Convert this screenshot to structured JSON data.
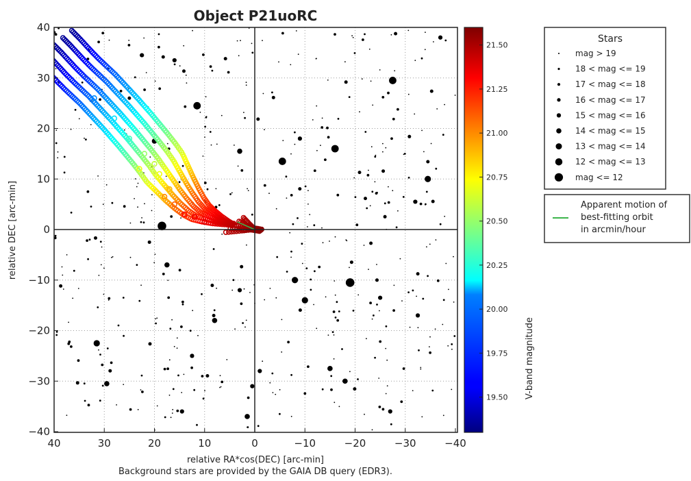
{
  "chart_data": {
    "type": "scatter",
    "title": "Object P21uoRC",
    "xlabel": "relative RA*cos(DEC) [arc-min]",
    "ylabel": "relative DEC [arc-min]",
    "footnote": "Background stars are provided by the GAIA DB query (EDR3).",
    "xlim": [
      40,
      -40
    ],
    "ylim": [
      -40,
      40
    ],
    "x_ticks": [
      40,
      30,
      20,
      10,
      0,
      -10,
      -20,
      -30,
      -40
    ],
    "y_ticks": [
      40,
      30,
      20,
      10,
      0,
      -10,
      -20,
      -30,
      -40
    ],
    "x_tick_labels": [
      "40",
      "30",
      "20",
      "10",
      "0",
      "−10",
      "−20",
      "−30",
      "−40"
    ],
    "y_tick_labels": [
      "40",
      "30",
      "20",
      "10",
      "0",
      "−10",
      "−20",
      "−30",
      "−40"
    ],
    "grid": true,
    "colorbar": {
      "label": "V-band magnitude",
      "range": [
        19.3,
        21.6
      ],
      "ticks": [
        19.5,
        19.75,
        20.0,
        20.25,
        20.5,
        20.75,
        21.0,
        21.25,
        21.5
      ],
      "tick_labels": [
        "19.50",
        "19.75",
        "20.00",
        "20.25",
        "20.50",
        "20.75",
        "21.00",
        "21.25",
        "21.50"
      ],
      "colormap": "jet"
    },
    "stars_legend": {
      "title": "Stars",
      "placement": "top-right, outside axes",
      "entries": [
        {
          "label": "mag > 19",
          "size": 1.0
        },
        {
          "label": "18 < mag <= 19",
          "size": 1.5
        },
        {
          "label": "17 < mag <= 18",
          "size": 2.0
        },
        {
          "label": "16 < mag <= 17",
          "size": 2.5
        },
        {
          "label": "15 < mag <= 16",
          "size": 3.0
        },
        {
          "label": "14 < mag <= 15",
          "size": 3.6
        },
        {
          "label": "13 < mag <= 14",
          "size": 4.3
        },
        {
          "label": "12 < mag <= 13",
          "size": 5.0
        },
        {
          "label": "mag <= 12",
          "size": 5.8
        }
      ]
    },
    "motion_legend": {
      "label_lines": [
        "Apparent motion of",
        "best-fitting orbit",
        "in arcmin/hour"
      ],
      "color": "#3cb44b",
      "placement": "right, outside axes"
    },
    "orbit_points": [
      {
        "x": 40.0,
        "y": 36.5,
        "mag": 19.35
      },
      {
        "x": 38.6,
        "y": 35.1,
        "mag": 19.4
      },
      {
        "x": 37.2,
        "y": 33.6,
        "mag": 19.5
      },
      {
        "x": 35.8,
        "y": 32.1,
        "mag": 19.58
      },
      {
        "x": 34.3,
        "y": 30.6,
        "mag": 19.66
      },
      {
        "x": 32.8,
        "y": 29.2,
        "mag": 19.74
      },
      {
        "x": 31.3,
        "y": 27.8,
        "mag": 19.82
      },
      {
        "x": 29.8,
        "y": 26.2,
        "mag": 19.9
      },
      {
        "x": 28.3,
        "y": 24.6,
        "mag": 19.98
      },
      {
        "x": 26.8,
        "y": 23.0,
        "mag": 20.06
      },
      {
        "x": 25.3,
        "y": 21.3,
        "mag": 20.14
      },
      {
        "x": 23.8,
        "y": 19.6,
        "mag": 20.24
      },
      {
        "x": 22.3,
        "y": 17.8,
        "mag": 20.34
      },
      {
        "x": 20.8,
        "y": 16.0,
        "mag": 20.44
      },
      {
        "x": 19.3,
        "y": 14.1,
        "mag": 20.56
      },
      {
        "x": 17.8,
        "y": 12.0,
        "mag": 20.68
      },
      {
        "x": 16.4,
        "y": 10.0,
        "mag": 20.8
      },
      {
        "x": 15.0,
        "y": 8.0,
        "mag": 20.92
      },
      {
        "x": 13.6,
        "y": 6.2,
        "mag": 21.04
      },
      {
        "x": 12.2,
        "y": 4.6,
        "mag": 21.14
      },
      {
        "x": 10.8,
        "y": 3.4,
        "mag": 21.22
      },
      {
        "x": 9.2,
        "y": 2.6,
        "mag": 21.3
      },
      {
        "x": 7.5,
        "y": 1.9,
        "mag": 21.36
      },
      {
        "x": 5.6,
        "y": 1.3,
        "mag": 21.42
      },
      {
        "x": 3.6,
        "y": 0.8,
        "mag": 21.48
      },
      {
        "x": 1.8,
        "y": 0.4,
        "mag": 21.52
      },
      {
        "x": 0.3,
        "y": 0.1,
        "mag": 21.56
      },
      {
        "x": -1.5,
        "y": -0.2,
        "mag": 21.58
      }
    ],
    "orbit_spread": [
      {
        "x": 32.0,
        "y": 26.0,
        "mag": 19.9
      },
      {
        "x": 28.0,
        "y": 22.0,
        "mag": 20.1
      },
      {
        "x": 25.0,
        "y": 18.0,
        "mag": 20.3
      },
      {
        "x": 22.0,
        "y": 15.0,
        "mag": 20.5
      },
      {
        "x": 19.0,
        "y": 11.0,
        "mag": 20.7
      },
      {
        "x": 17.0,
        "y": 8.0,
        "mag": 20.9
      },
      {
        "x": 16.0,
        "y": 5.0,
        "mag": 21.1
      },
      {
        "x": 14.0,
        "y": 3.0,
        "mag": 21.3
      },
      {
        "x": 10.0,
        "y": 1.5,
        "mag": 21.4
      },
      {
        "x": 20.0,
        "y": 13.0,
        "mag": 20.6
      },
      {
        "x": 23.0,
        "y": 12.0,
        "mag": 20.7
      },
      {
        "x": 18.0,
        "y": 6.5,
        "mag": 21.0
      },
      {
        "x": 12.0,
        "y": 2.5,
        "mag": 21.35
      }
    ],
    "bright_stars": [
      {
        "x": 18.5,
        "y": 0.7,
        "mag": 11.5
      },
      {
        "x": -19.0,
        "y": -10.5,
        "mag": 12.0
      },
      {
        "x": -16.0,
        "y": 16.0,
        "mag": 12.5
      },
      {
        "x": 11.5,
        "y": 24.5,
        "mag": 12.8
      },
      {
        "x": -5.5,
        "y": 13.5,
        "mag": 12.9
      },
      {
        "x": -27.5,
        "y": 29.5,
        "mag": 13.0
      },
      {
        "x": -34.5,
        "y": 10.0,
        "mag": 13.5
      },
      {
        "x": -8.0,
        "y": -10.0,
        "mag": 13.6
      },
      {
        "x": -10.0,
        "y": -14.0,
        "mag": 13.8
      },
      {
        "x": 29.5,
        "y": -30.5,
        "mag": 14.2
      },
      {
        "x": 31.5,
        "y": -22.5,
        "mag": 14.0
      },
      {
        "x": 3.0,
        "y": 15.5,
        "mag": 14.5
      },
      {
        "x": -15.0,
        "y": -27.5,
        "mag": 14.3
      },
      {
        "x": 17.5,
        "y": -7.0,
        "mag": 14.6
      },
      {
        "x": -18.0,
        "y": -30.0,
        "mag": 14.4
      },
      {
        "x": 8.0,
        "y": -18.0,
        "mag": 14.9
      },
      {
        "x": 20.0,
        "y": 17.5,
        "mag": 14.7
      },
      {
        "x": 1.5,
        "y": -37.0,
        "mag": 15.0
      },
      {
        "x": -37.0,
        "y": 38.0,
        "mag": 15.2
      },
      {
        "x": 22.5,
        "y": 34.5,
        "mag": 15.4
      },
      {
        "x": 16.0,
        "y": 33.5,
        "mag": 15.1
      },
      {
        "x": -9.0,
        "y": 18.0,
        "mag": 15.5
      },
      {
        "x": -32.5,
        "y": -17.0,
        "mag": 15.3
      },
      {
        "x": -25.0,
        "y": -13.5,
        "mag": 15.6
      },
      {
        "x": 0.5,
        "y": -31.0,
        "mag": 15.8
      },
      {
        "x": 14.5,
        "y": -36.0,
        "mag": 15.9
      },
      {
        "x": -27.0,
        "y": -36.0,
        "mag": 15.7
      },
      {
        "x": -32.0,
        "y": 5.5,
        "mag": 15.5
      },
      {
        "x": -1.0,
        "y": -28.0,
        "mag": 15.9
      },
      {
        "x": 3.0,
        "y": -12.0,
        "mag": 16.0
      },
      {
        "x": 12.5,
        "y": -25.0,
        "mag": 16.0
      },
      {
        "x": 21.0,
        "y": -2.5,
        "mag": 16.2
      },
      {
        "x": 25.0,
        "y": 26.0,
        "mag": 16.3
      }
    ],
    "faint_star_field": {
      "count": 520,
      "mag_range": [
        16.3,
        20.5
      ],
      "region": "full axes, uniformly scattered"
    }
  }
}
